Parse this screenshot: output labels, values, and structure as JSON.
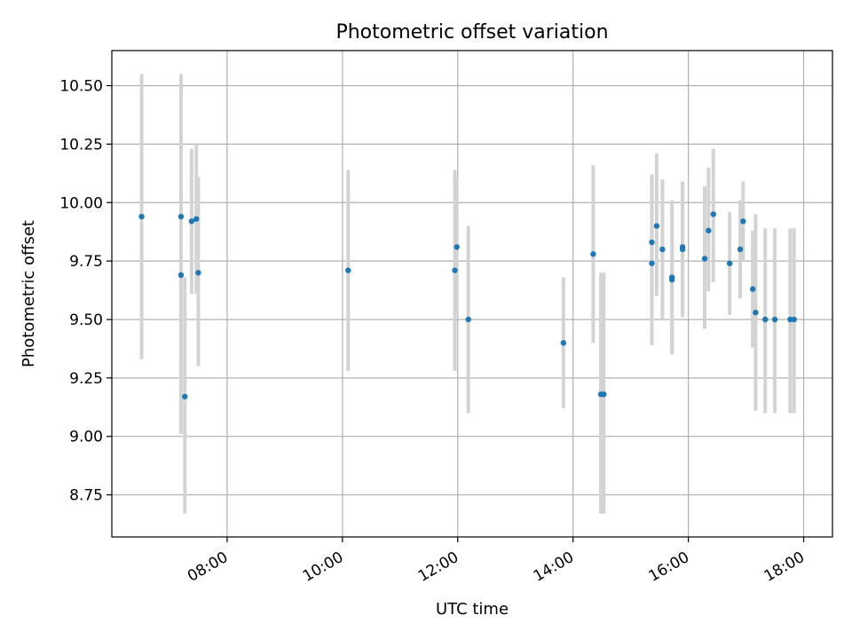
{
  "chart_data": {
    "type": "scatter",
    "title": "Photometric offset variation",
    "xlabel": "UTC time",
    "ylabel": "Photometric offset",
    "xlim": [
      "06:00",
      "18:30"
    ],
    "ylim": [
      8.57,
      10.65
    ],
    "grid": true,
    "x_ticks": [
      {
        "value": "08:00",
        "label": "08:00"
      },
      {
        "value": "10:00",
        "label": "10:00"
      },
      {
        "value": "12:00",
        "label": "12:00"
      },
      {
        "value": "14:00",
        "label": "14:00"
      },
      {
        "value": "16:00",
        "label": "16:00"
      },
      {
        "value": "18:00",
        "label": "18:00"
      }
    ],
    "y_ticks": [
      {
        "value": 8.75,
        "label": "8.75"
      },
      {
        "value": 9.0,
        "label": "9.00"
      },
      {
        "value": 9.25,
        "label": "9.25"
      },
      {
        "value": 9.5,
        "label": "9.50"
      },
      {
        "value": 9.75,
        "label": "9.75"
      },
      {
        "value": 10.0,
        "label": "10.00"
      },
      {
        "value": 10.25,
        "label": "10.25"
      },
      {
        "value": 10.5,
        "label": "10.50"
      }
    ],
    "colors": {
      "point": "#1f77b4",
      "errorbar": "#d3d3d3",
      "grid": "#b0b0b0"
    },
    "series": [
      {
        "points": [
          {
            "x": "06:31",
            "y": 9.94,
            "yerr_low": 9.33,
            "yerr_high": 10.55
          },
          {
            "x": "07:12",
            "y": 9.94,
            "yerr_low": 9.33,
            "yerr_high": 10.55
          },
          {
            "x": "07:12",
            "y": 9.69,
            "yerr_low": 9.01,
            "yerr_high": 10.37
          },
          {
            "x": "07:16",
            "y": 9.17,
            "yerr_low": 8.67,
            "yerr_high": 9.68
          },
          {
            "x": "07:23",
            "y": 9.92,
            "yerr_low": 9.61,
            "yerr_high": 10.23
          },
          {
            "x": "07:28",
            "y": 9.93,
            "yerr_low": 9.61,
            "yerr_high": 10.25
          },
          {
            "x": "07:30",
            "y": 9.7,
            "yerr_low": 9.3,
            "yerr_high": 10.11
          },
          {
            "x": "10:06",
            "y": 9.71,
            "yerr_low": 9.28,
            "yerr_high": 10.14
          },
          {
            "x": "11:57",
            "y": 9.71,
            "yerr_low": 9.28,
            "yerr_high": 10.14
          },
          {
            "x": "11:59",
            "y": 9.81,
            "yerr_low": 9.53,
            "yerr_high": 10.1
          },
          {
            "x": "12:11",
            "y": 9.5,
            "yerr_low": 9.1,
            "yerr_high": 9.9
          },
          {
            "x": "13:50",
            "y": 9.4,
            "yerr_low": 9.12,
            "yerr_high": 9.68
          },
          {
            "x": "14:21",
            "y": 9.78,
            "yerr_low": 9.4,
            "yerr_high": 10.16
          },
          {
            "x": "14:29",
            "y": 9.18,
            "yerr_low": 8.67,
            "yerr_high": 9.7
          },
          {
            "x": "14:32",
            "y": 9.18,
            "yerr_low": 8.67,
            "yerr_high": 9.7
          },
          {
            "x": "15:22",
            "y": 9.83,
            "yerr_low": 9.54,
            "yerr_high": 10.12
          },
          {
            "x": "15:22",
            "y": 9.74,
            "yerr_low": 9.39,
            "yerr_high": 10.09
          },
          {
            "x": "15:27",
            "y": 9.9,
            "yerr_low": 9.6,
            "yerr_high": 10.21
          },
          {
            "x": "15:33",
            "y": 9.8,
            "yerr_low": 9.5,
            "yerr_high": 10.1
          },
          {
            "x": "15:43",
            "y": 9.67,
            "yerr_low": 9.35,
            "yerr_high": 10.0
          },
          {
            "x": "15:43",
            "y": 9.68,
            "yerr_low": 9.36,
            "yerr_high": 10.01
          },
          {
            "x": "15:54",
            "y": 9.8,
            "yerr_low": 9.51,
            "yerr_high": 10.09
          },
          {
            "x": "15:54",
            "y": 9.81,
            "yerr_low": 9.53,
            "yerr_high": 10.09
          },
          {
            "x": "16:17",
            "y": 9.76,
            "yerr_low": 9.46,
            "yerr_high": 10.07
          },
          {
            "x": "16:21",
            "y": 9.88,
            "yerr_low": 9.62,
            "yerr_high": 10.15
          },
          {
            "x": "16:26",
            "y": 9.95,
            "yerr_low": 9.66,
            "yerr_high": 10.23
          },
          {
            "x": "16:43",
            "y": 9.74,
            "yerr_low": 9.52,
            "yerr_high": 9.96
          },
          {
            "x": "16:54",
            "y": 9.8,
            "yerr_low": 9.59,
            "yerr_high": 10.01
          },
          {
            "x": "16:57",
            "y": 9.92,
            "yerr_low": 9.75,
            "yerr_high": 10.09
          },
          {
            "x": "17:07",
            "y": 9.63,
            "yerr_low": 9.38,
            "yerr_high": 9.88
          },
          {
            "x": "17:10",
            "y": 9.53,
            "yerr_low": 9.11,
            "yerr_high": 9.95
          },
          {
            "x": "17:20",
            "y": 9.5,
            "yerr_low": 9.1,
            "yerr_high": 9.89
          },
          {
            "x": "17:30",
            "y": 9.5,
            "yerr_low": 9.1,
            "yerr_high": 9.89
          },
          {
            "x": "17:46",
            "y": 9.5,
            "yerr_low": 9.1,
            "yerr_high": 9.89
          },
          {
            "x": "17:50",
            "y": 9.5,
            "yerr_low": 9.1,
            "yerr_high": 9.89
          }
        ]
      }
    ]
  }
}
